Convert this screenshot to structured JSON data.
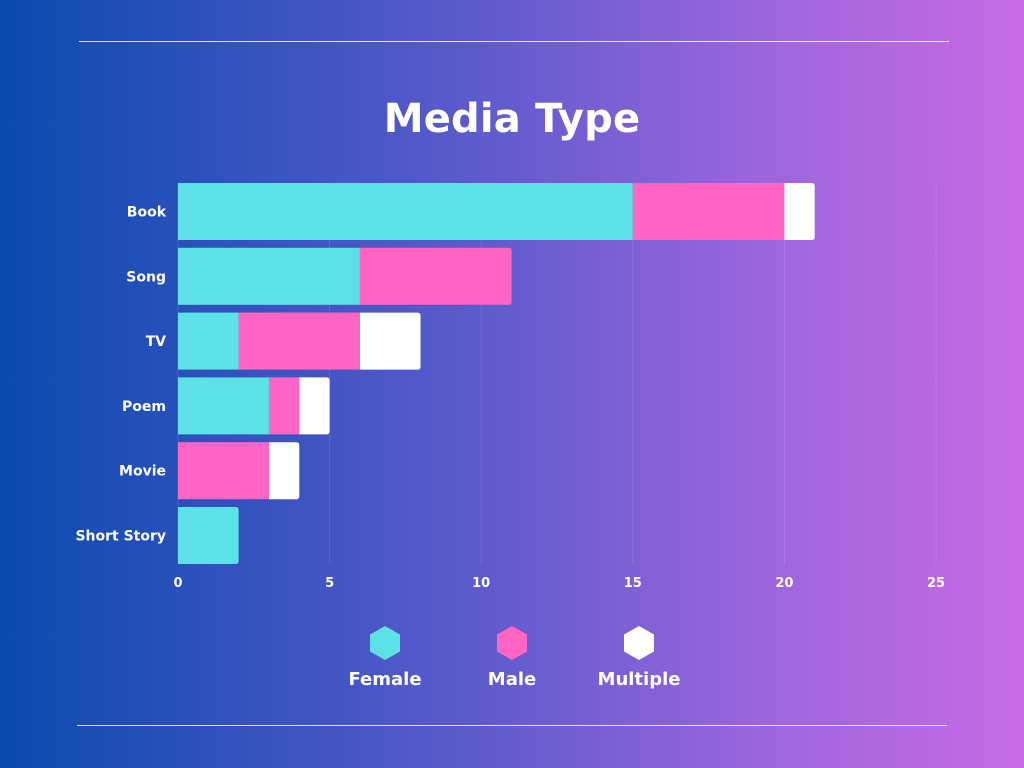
{
  "chart_data": {
    "type": "bar",
    "orientation": "horizontal",
    "stacked": true,
    "title": "Media Type",
    "categories": [
      "Book",
      "Song",
      "TV",
      "Poem",
      "Movie",
      "Short Story"
    ],
    "series": [
      {
        "name": "Female",
        "color": "#5ce1e6",
        "values": [
          15,
          6,
          2,
          3,
          0,
          2
        ]
      },
      {
        "name": "Male",
        "color": "#ff66c4",
        "values": [
          5,
          5,
          4,
          1,
          3,
          0
        ]
      },
      {
        "name": "Multiple",
        "color": "#ffffff",
        "values": [
          1,
          0,
          2,
          1,
          1,
          0
        ]
      }
    ],
    "xlim": [
      0,
      25
    ],
    "xticks": [
      0,
      5,
      10,
      15,
      20,
      25
    ],
    "xlabel": "",
    "ylabel": "",
    "grid": "vertical",
    "legend_position": "bottom"
  }
}
